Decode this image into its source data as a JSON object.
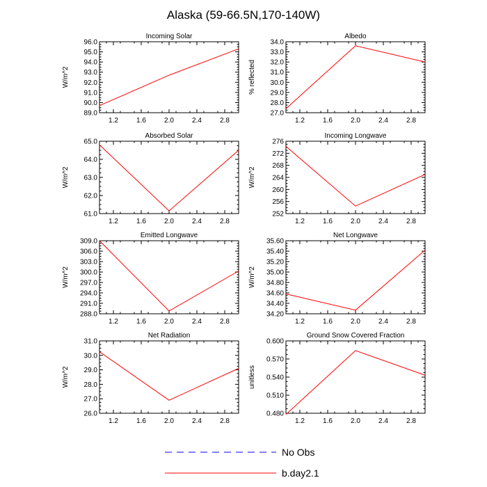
{
  "title": "Alaska (59-66.5N,170-140W)",
  "colors": {
    "model": "#ff0000",
    "obs": "#0000ff",
    "axis": "#000000"
  },
  "legend": [
    {
      "label": "No Obs",
      "style": "dashed",
      "color": "#0000ff"
    },
    {
      "label": "b.day2.1",
      "style": "solid",
      "color": "#ff0000"
    }
  ],
  "chart_data": [
    {
      "type": "line",
      "title": "Incoming Solar",
      "ylabel": "W/m^2",
      "x": [
        1.0,
        2.0,
        3.0
      ],
      "xlim": [
        1.0,
        3.0
      ],
      "xticks": [
        "1.2",
        "1.6",
        "2.0",
        "2.4",
        "2.8"
      ],
      "ylim": [
        89.0,
        96.0
      ],
      "yticks": [
        "89.0",
        "90.0",
        "91.0",
        "92.0",
        "93.0",
        "94.0",
        "95.0",
        "96.0"
      ],
      "series": [
        {
          "name": "b.day2.1",
          "values": [
            89.7,
            92.7,
            95.3
          ]
        }
      ]
    },
    {
      "type": "line",
      "title": "Albedo",
      "ylabel": "% reflected",
      "x": [
        1.0,
        2.0,
        3.0
      ],
      "xlim": [
        1.0,
        3.0
      ],
      "xticks": [
        "1.2",
        "1.6",
        "2.0",
        "2.4",
        "2.8"
      ],
      "ylim": [
        27.0,
        34.0
      ],
      "yticks": [
        "27.0",
        "28.0",
        "29.0",
        "30.0",
        "31.0",
        "32.0",
        "33.0",
        "34.0"
      ],
      "series": [
        {
          "name": "b.day2.1",
          "values": [
            27.4,
            33.6,
            32.0
          ]
        }
      ]
    },
    {
      "type": "line",
      "title": "Absorbed Solar",
      "ylabel": "W/m^2",
      "x": [
        1.0,
        2.0,
        3.0
      ],
      "xlim": [
        1.0,
        3.0
      ],
      "xticks": [
        "1.2",
        "1.6",
        "2.0",
        "2.4",
        "2.8"
      ],
      "ylim": [
        61.0,
        65.0
      ],
      "yticks": [
        "61.0",
        "62.0",
        "63.0",
        "64.0",
        "65.0"
      ],
      "series": [
        {
          "name": "b.day2.1",
          "values": [
            64.8,
            61.15,
            64.5
          ]
        }
      ]
    },
    {
      "type": "line",
      "title": "Incoming Longwave",
      "ylabel": "W/m^2",
      "x": [
        1.0,
        2.0,
        3.0
      ],
      "xlim": [
        1.0,
        3.0
      ],
      "xticks": [
        "1.2",
        "1.6",
        "2.0",
        "2.4",
        "2.8"
      ],
      "ylim": [
        252,
        276
      ],
      "yticks": [
        "252",
        "256",
        "260",
        "264",
        "268",
        "272",
        "276"
      ],
      "series": [
        {
          "name": "b.day2.1",
          "values": [
            274.3,
            254.5,
            265.0
          ]
        }
      ]
    },
    {
      "type": "line",
      "title": "Emitted Longwave",
      "ylabel": "W/m^2",
      "x": [
        1.0,
        2.0,
        3.0
      ],
      "xlim": [
        1.0,
        3.0
      ],
      "xticks": [
        "1.2",
        "1.6",
        "2.0",
        "2.4",
        "2.8"
      ],
      "ylim": [
        288.0,
        309.0
      ],
      "yticks": [
        "288.0",
        "291.0",
        "294.0",
        "297.0",
        "300.0",
        "303.0",
        "306.0",
        "309.0"
      ],
      "series": [
        {
          "name": "b.day2.1",
          "values": [
            309.0,
            288.8,
            300.3
          ]
        }
      ]
    },
    {
      "type": "line",
      "title": "Net Longwave",
      "ylabel": "W/m^2",
      "x": [
        1.0,
        2.0,
        3.0
      ],
      "xlim": [
        1.0,
        3.0
      ],
      "xticks": [
        "1.2",
        "1.6",
        "2.0",
        "2.4",
        "2.8"
      ],
      "ylim": [
        34.2,
        35.6
      ],
      "yticks": [
        "34.20",
        "34.40",
        "34.60",
        "34.80",
        "35.00",
        "35.20",
        "35.40",
        "35.60"
      ],
      "series": [
        {
          "name": "b.day2.1",
          "values": [
            34.58,
            34.27,
            35.42
          ]
        }
      ]
    },
    {
      "type": "line",
      "title": "Net Radiation",
      "ylabel": "W/m^2",
      "x": [
        1.0,
        2.0,
        3.0
      ],
      "xlim": [
        1.0,
        3.0
      ],
      "xticks": [
        "1.2",
        "1.6",
        "2.0",
        "2.4",
        "2.8"
      ],
      "ylim": [
        26.0,
        31.0
      ],
      "yticks": [
        "26.0",
        "27.0",
        "28.0",
        "29.0",
        "30.0",
        "31.0"
      ],
      "series": [
        {
          "name": "b.day2.1",
          "values": [
            30.25,
            26.9,
            29.1
          ]
        }
      ]
    },
    {
      "type": "line",
      "title": "Ground Snow Covered Fraction",
      "ylabel": "unitless",
      "x": [
        1.0,
        2.0,
        3.0
      ],
      "xlim": [
        1.0,
        3.0
      ],
      "xticks": [
        "1.2",
        "1.6",
        "2.0",
        "2.4",
        "2.8"
      ],
      "ylim": [
        0.48,
        0.6
      ],
      "yticks": [
        "0.480",
        "0.510",
        "0.540",
        "0.570",
        "0.600"
      ],
      "series": [
        {
          "name": "b.day2.1",
          "values": [
            0.478,
            0.584,
            0.543
          ]
        }
      ]
    }
  ]
}
